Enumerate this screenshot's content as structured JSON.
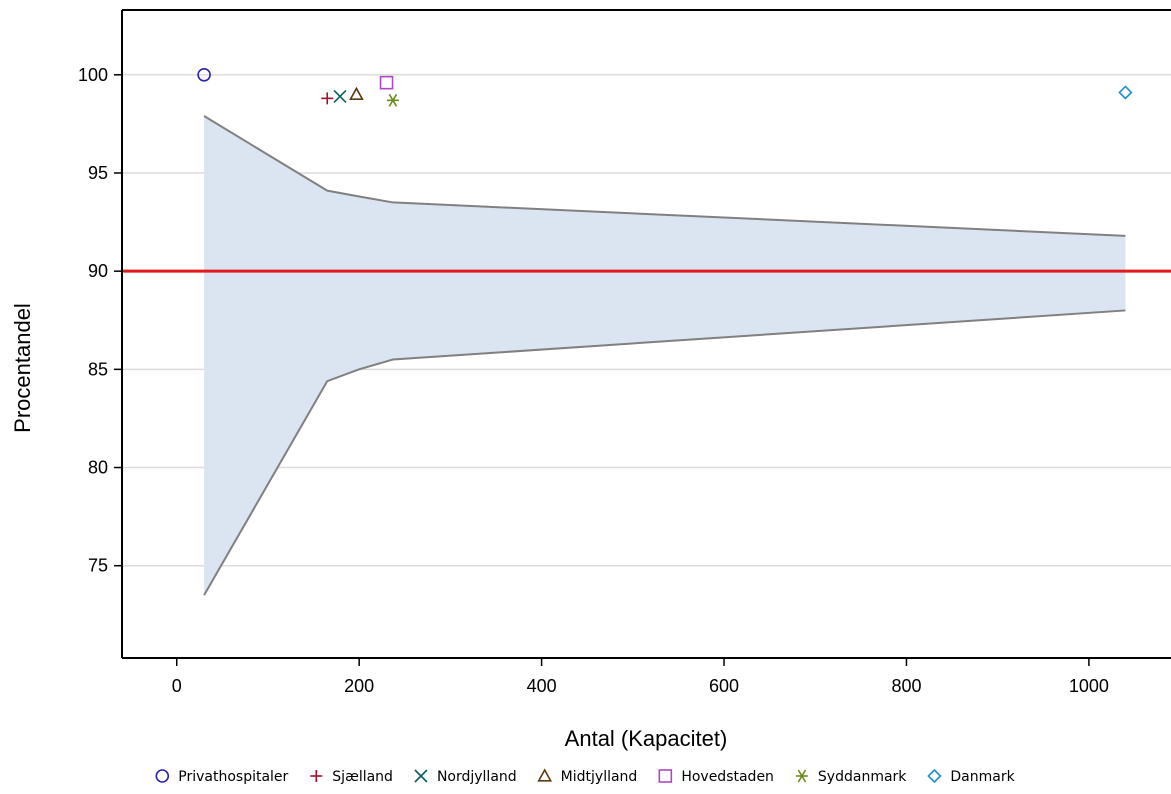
{
  "chart_data": {
    "type": "scatter",
    "title": "",
    "xlabel": "Antal (Kapacitet)",
    "ylabel": "Procentandel",
    "xlim": [
      -60,
      1090
    ],
    "ylim": [
      70.3,
      103.3
    ],
    "xticks": [
      0,
      200,
      400,
      600,
      800,
      1000
    ],
    "yticks": [
      75,
      80,
      85,
      90,
      95,
      100
    ],
    "xtick_labels": [
      "0",
      "200",
      "400",
      "600",
      "800",
      "1000"
    ],
    "ytick_labels": [
      "75",
      "80",
      "85",
      "90",
      "95",
      "100"
    ],
    "grid": "horizontal",
    "legend_position": "bottom",
    "reference_line": {
      "y": 90,
      "color": "#e3191c"
    },
    "funnel": {
      "x": [
        30,
        165,
        200,
        237,
        1040
      ],
      "upper": [
        97.9,
        94.1,
        93.8,
        93.5,
        91.8
      ],
      "lower": [
        73.5,
        84.4,
        85.0,
        85.5,
        88.0
      ],
      "fill_color": "#dbe5f1",
      "line_color": "#808080"
    },
    "series": [
      {
        "name": "Privathospitaler",
        "x": 30,
        "y": 100.0,
        "marker": "circle",
        "color": "#2a24b5"
      },
      {
        "name": "Sjælland",
        "x": 165,
        "y": 98.8,
        "marker": "plus",
        "color": "#a0112f"
      },
      {
        "name": "Nordjylland",
        "x": 179,
        "y": 98.9,
        "marker": "x",
        "color": "#0b5e62"
      },
      {
        "name": "Midtjylland",
        "x": 197,
        "y": 99.0,
        "marker": "triangle",
        "color": "#5a3a10"
      },
      {
        "name": "Hovedstaden",
        "x": 230,
        "y": 99.6,
        "marker": "square",
        "color": "#b046c6"
      },
      {
        "name": "Syddanmark",
        "x": 237,
        "y": 98.7,
        "marker": "star",
        "color": "#6b8a1e"
      },
      {
        "name": "Danmark",
        "x": 1040,
        "y": 99.1,
        "marker": "diamond",
        "color": "#1f8fd1"
      }
    ]
  }
}
